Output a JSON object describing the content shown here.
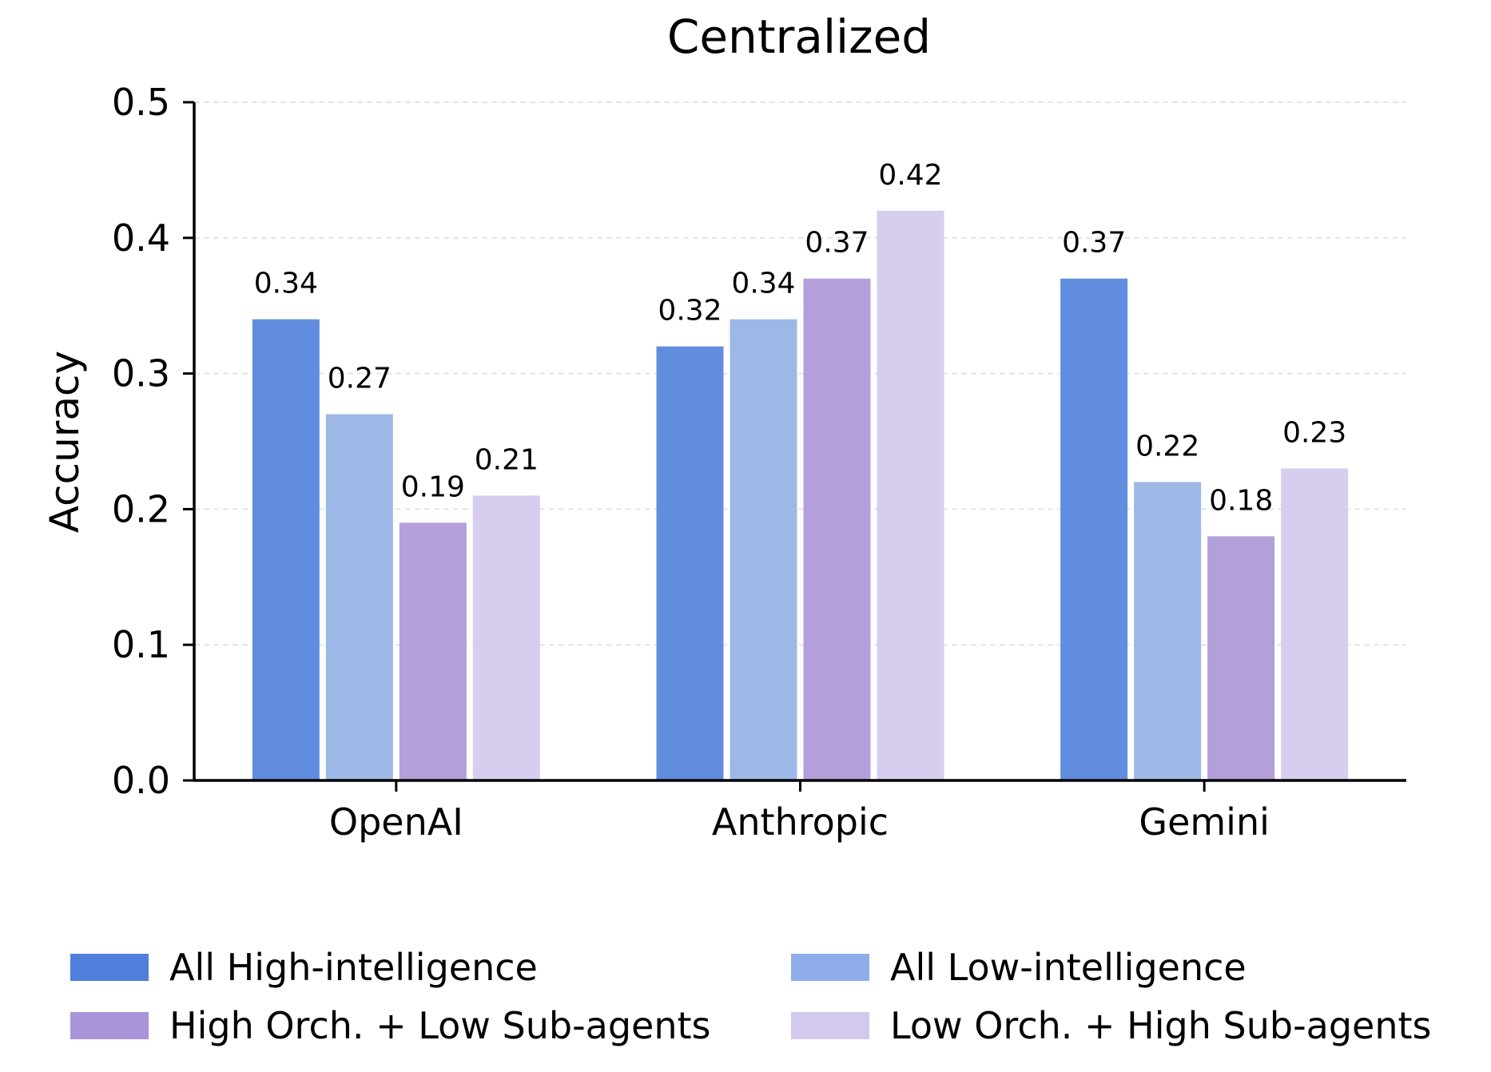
{
  "chart_data": {
    "type": "bar",
    "title": "Centralized",
    "xlabel": "",
    "ylabel": "Accuracy",
    "ylim": [
      0,
      0.5
    ],
    "yticks": [
      "0.0",
      "0.1",
      "0.2",
      "0.3",
      "0.4",
      "0.5"
    ],
    "grid": "horizontal dashed",
    "legend_position": "bottom",
    "categories": [
      "OpenAI",
      "Anthropic",
      "Gemini"
    ],
    "series": [
      {
        "name": "All High-intelligence",
        "color": "#618ddf",
        "legend_color": "#4f7fdb",
        "values": [
          0.34,
          0.32,
          0.37
        ],
        "labels": [
          "0.34",
          "0.32",
          "0.37"
        ]
      },
      {
        "name": "All Low-intelligence",
        "color": "#9db8e6",
        "legend_color": "#8fadea",
        "values": [
          0.27,
          0.34,
          0.22
        ],
        "labels": [
          "0.27",
          "0.34",
          "0.22"
        ]
      },
      {
        "name": "High Orch. + Low Sub-agents",
        "color": "#b3a0db",
        "legend_color": "#a894d9",
        "values": [
          0.19,
          0.37,
          0.18
        ],
        "labels": [
          "0.19",
          "0.37",
          "0.18"
        ]
      },
      {
        "name": "Low Orch. + High Sub-agents",
        "color": "#d7cdee",
        "legend_color": "#d3c8ee",
        "values": [
          0.21,
          0.42,
          0.23
        ],
        "labels": [
          "0.21",
          "0.42",
          "0.23"
        ]
      }
    ]
  }
}
